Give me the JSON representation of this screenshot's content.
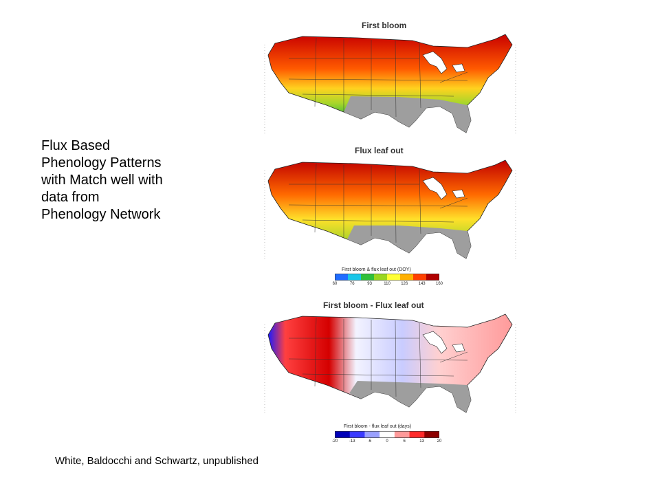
{
  "caption": {
    "lines": [
      "Flux Based",
      "Phenology Patterns",
      "with Match well with",
      "data from",
      "Phenology Network"
    ]
  },
  "credit": "White, Baldocchi and Schwartz, unpublished",
  "panels": [
    {
      "title": "First bloom",
      "scheme": "doy"
    },
    {
      "title": "Flux leaf out",
      "scheme": "doy"
    },
    {
      "title": "First bloom - Flux leaf out",
      "scheme": "diff"
    }
  ],
  "colorbars": [
    {
      "title": "First bloom & flux leaf out (DOY)",
      "ticks": [
        "60",
        "76",
        "93",
        "110",
        "126",
        "143",
        "160"
      ],
      "colors": [
        "#1f6cff",
        "#19c6e8",
        "#2fbf3a",
        "#9ad61f",
        "#ffff33",
        "#ffb000",
        "#ff4000",
        "#b00000"
      ]
    },
    {
      "title": "First bloom - flux leaf out (days)",
      "ticks": [
        "-20",
        "-13",
        "-6",
        "0",
        "6",
        "13",
        "20"
      ],
      "colors": [
        "#0000b8",
        "#3a3aff",
        "#9aa0ff",
        "#ffffff",
        "#ff9a9a",
        "#ff2a2a",
        "#8c0000"
      ]
    }
  ]
}
